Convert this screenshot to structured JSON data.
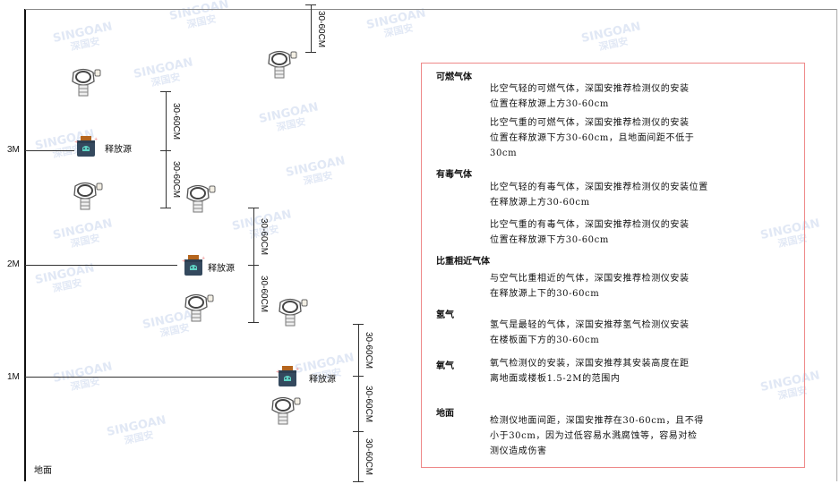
{
  "watermark": {
    "brand": "SINGOAN",
    "cn": "深国安"
  },
  "levels": {
    "l3": "3M",
    "l2": "2M",
    "l1": "1M",
    "ground": "地面"
  },
  "source_label": "释放源",
  "dimension_label": "30-60CM",
  "panel": {
    "sections": [
      {
        "heading": "可燃气体",
        "paras": [
          "比空气轻的可燃气体，深国安推荐检测仪的安装\n位置在释放源上方30-60cm",
          "比空气重的可燃气体，深国安推荐检测仪的安装\n位置在释放源下方30-60cm，且地面间距不低于\n30cm"
        ]
      },
      {
        "heading": "有毒气体",
        "paras": [
          "比空气轻的有毒气体，深国安推荐检测仪的安装位置\n在释放源上方30-60cm",
          "比空气重的有毒气体，深国安推荐检测仪的安装\n位置在释放源下方30-60cm"
        ]
      },
      {
        "heading": "比重相近气体",
        "paras": [
          "与空气比重相近的气体，深国安推荐检测仪安装\n在释放源上下的30-60cm"
        ]
      },
      {
        "heading": "氢气",
        "paras": [
          "氢气是最轻的气体，深国安推荐氢气检测仪安装\n在楼板面下方的30-60cm"
        ]
      },
      {
        "heading": "氧气",
        "paras": [
          "氧气检测仪的安装，深国安推荐其安装高度在距\n离地面或楼板1.5-2M的范围内"
        ]
      },
      {
        "heading": "地面",
        "paras": [
          "检测仪地面间距，深国安推荐在30-60cm，且不得\n小于30cm，因为过低容易水溅腐蚀等，容易对检\n测仪造成伤害"
        ]
      }
    ]
  },
  "colors": {
    "panel_border": "#e88888",
    "source_body": "#34495e",
    "source_cap": "#b5651d",
    "source_glyph": "#5fd3c4"
  }
}
